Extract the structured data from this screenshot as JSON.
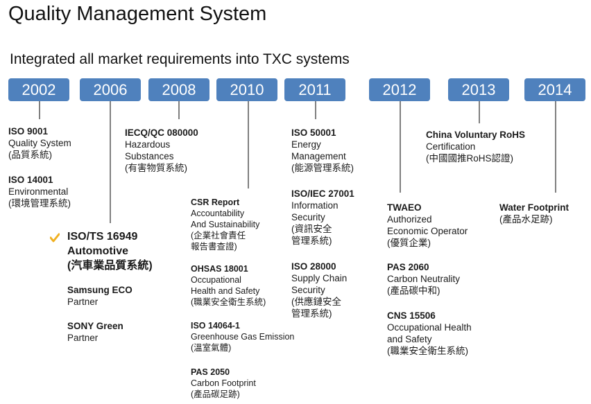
{
  "header": {
    "title": "Quality Management System",
    "subtitle": "Integrated all  market requirements into TXC systems"
  },
  "colors": {
    "year_box": "#4f81bd",
    "connector": "#7f7f7f",
    "checkmark": "#f0b020"
  },
  "timeline": [
    {
      "year": "2002",
      "entries": [
        {
          "title": "ISO 9001",
          "lines": [
            "Quality System",
            "(品質系統)"
          ]
        },
        {
          "title": "ISO 14001",
          "lines": [
            "Environmental",
            "(環境管理系統)"
          ]
        }
      ]
    },
    {
      "year": "2006",
      "entries": [
        {
          "title": "ISO/TS 16949",
          "lines": [
            "Automotive",
            "(汽車業品質系統)"
          ],
          "icon": "checkmark-icon"
        },
        {
          "title": "Samsung ECO",
          "lines": [
            "Partner"
          ]
        },
        {
          "title": "SONY Green",
          "lines": [
            "Partner"
          ]
        }
      ]
    },
    {
      "year": "2008",
      "entries": [
        {
          "title": "IECQ/QC 080000",
          "lines": [
            "Hazardous",
            "Substances",
            "(有害物質系統)"
          ]
        }
      ]
    },
    {
      "year": "2010",
      "entries": [
        {
          "title": "CSR Report",
          "lines": [
            "Accountability",
            "And Sustainability",
            "(企業社會責任",
            "報告書查證)"
          ]
        },
        {
          "title": "OHSAS 18001",
          "lines": [
            "Occupational",
            "Health and Safety",
            "(職業安全衛生系統)"
          ]
        },
        {
          "title": "ISO 14064-1",
          "lines": [
            "Greenhouse Gas Emission",
            "(溫室氣體)"
          ]
        },
        {
          "title": "PAS 2050",
          "lines": [
            "Carbon Footprint",
            "(產品碳足跡)"
          ]
        }
      ]
    },
    {
      "year": "2011",
      "entries": [
        {
          "title": "ISO 50001",
          "lines": [
            "Energy",
            "Management",
            "(能源管理系統)"
          ]
        },
        {
          "title": "ISO/IEC 27001",
          "lines": [
            "Information",
            "Security",
            "(資訊安全",
            "管理系統)"
          ]
        },
        {
          "title": "ISO 28000",
          "lines": [
            "Supply Chain",
            "Security",
            "(供應鏈安全",
            "管理系統)"
          ]
        }
      ]
    },
    {
      "year": "2012",
      "entries": [
        {
          "title": "TWAEO",
          "lines": [
            "Authorized",
            "Economic Operator",
            "(優質企業)"
          ]
        },
        {
          "title": "PAS 2060",
          "lines": [
            "Carbon Neutrality",
            "(產品碳中和)"
          ]
        },
        {
          "title": "CNS 15506",
          "lines": [
            "Occupational Health",
            "and Safety",
            "(職業安全衛生系統)"
          ]
        }
      ]
    },
    {
      "year": "2013",
      "entries": [
        {
          "title": "China Voluntary RoHS",
          "lines": [
            "Certification",
            "(中國國推RoHS認證)"
          ]
        }
      ]
    },
    {
      "year": "2014",
      "entries": [
        {
          "title": "Water Footprint",
          "lines": [
            "(產品水足跡)"
          ]
        }
      ]
    }
  ]
}
